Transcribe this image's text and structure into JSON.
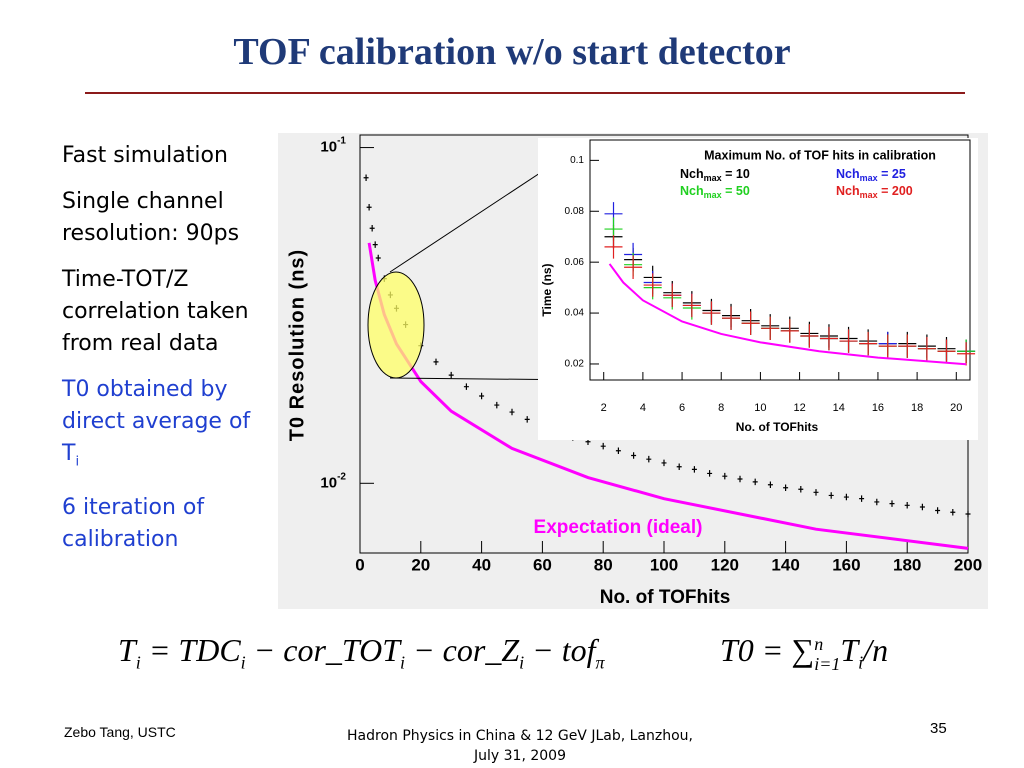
{
  "header": {
    "title": "TOF calibration w/o start detector"
  },
  "bullets": [
    {
      "text": "Fast simulation",
      "color": "#000000"
    },
    {
      "text": "Single channel resolution: 90ps",
      "color": "#000000"
    },
    {
      "text": "Time-TOT/Z correlation taken from real data",
      "color": "#000000"
    },
    {
      "text": "T0 obtained by direct average of T",
      "sub": "i",
      "color": "#1f3fd0"
    },
    {
      "text": "6 iteration of calibration",
      "color": "#1f3fd0"
    }
  ],
  "formula_1": [
    [
      "T",
      "i"
    ],
    [
      " = TDC",
      "i"
    ],
    [
      " − cor_TOT",
      "i"
    ],
    [
      " − cor_Z",
      "i"
    ],
    [
      " − tof",
      "π"
    ]
  ],
  "formula_2": {
    "main": "T0 = ∑",
    "upper": "n",
    "lower": "i=1",
    "term": "T",
    "term_sub": "i",
    "divisor": "/n"
  },
  "footer": {
    "author": "Zebo Tang, USTC",
    "event": "Hadron Physics in China & 12 GeV JLab, Lanzhou,",
    "date": "July 31, 2009",
    "page": "35"
  },
  "chart_data": [
    {
      "type": "scatter",
      "xlabel": "No. of TOFhits",
      "ylabel": "T0 Resolution (ns)",
      "annotation": "Expectation (ideal)",
      "log_y": true,
      "xlim": [
        0,
        200
      ],
      "xticks": [
        0,
        20,
        40,
        60,
        80,
        100,
        120,
        140,
        160,
        180,
        200
      ],
      "ylim": [
        0.0062,
        0.109
      ],
      "yticks": [
        {
          "value": 0.01,
          "label": "10-2"
        },
        {
          "value": 0.1,
          "label": "10-1"
        }
      ],
      "series": [
        {
          "color": "#000000",
          "style": "points",
          "x": [
            2,
            3,
            4,
            5,
            6,
            8,
            10,
            12,
            15,
            20,
            25,
            30,
            35,
            40,
            45,
            50,
            55,
            60,
            65,
            70,
            75,
            80,
            85,
            90,
            95,
            100,
            105,
            110,
            115,
            120,
            125,
            130,
            135,
            140,
            145,
            150,
            155,
            160,
            165,
            170,
            175,
            180,
            185,
            190,
            195,
            200
          ],
          "values": [
            0.0813,
            0.0664,
            0.0575,
            0.0514,
            0.0469,
            0.0407,
            0.0364,
            0.0332,
            0.0297,
            0.0257,
            0.023,
            0.021,
            0.0194,
            0.0182,
            0.0171,
            0.0163,
            0.0155,
            0.0148,
            0.0143,
            0.0137,
            0.0133,
            0.0129,
            0.0125,
            0.0121,
            0.0118,
            0.0115,
            0.0112,
            0.011,
            0.0107,
            0.0105,
            0.0103,
            0.0101,
            0.0099,
            0.0097,
            0.0096,
            0.0094,
            0.0092,
            0.0091,
            0.009,
            0.0088,
            0.0087,
            0.0086,
            0.0085,
            0.0083,
            0.0082,
            0.0081
          ]
        },
        {
          "color": "#ff00ff",
          "style": "line",
          "x": [
            3,
            5,
            8,
            12,
            20,
            30,
            50,
            75,
            100,
            150,
            200
          ],
          "values": [
            0.052,
            0.0402,
            0.0318,
            0.026,
            0.0201,
            0.0164,
            0.0127,
            0.0104,
            0.009,
            0.0073,
            0.0064
          ]
        }
      ]
    },
    {
      "type": "scatter",
      "title": "Maximum No. of TOF hits in calibration",
      "xlabel": "No. of TOFhits",
      "ylabel": "Time (ns)",
      "xlim": [
        1.3,
        20.7
      ],
      "xticks": [
        2,
        4,
        6,
        8,
        10,
        12,
        14,
        16,
        18,
        20
      ],
      "ylim": [
        0.0137,
        0.108
      ],
      "yticks": [
        0.02,
        0.04,
        0.06,
        0.08,
        0.1
      ],
      "x": [
        2.5,
        3.5,
        4.5,
        5.5,
        6.5,
        7.5,
        8.5,
        9.5,
        10.5,
        11.5,
        12.5,
        13.5,
        14.5,
        15.5,
        16.5,
        17.5,
        18.5,
        19.5,
        20.5
      ],
      "series": [
        {
          "name": "Nchmax = 10",
          "color": "#000000",
          "values": [
            0.07,
            0.061,
            0.054,
            0.048,
            0.044,
            0.041,
            0.039,
            0.037,
            0.035,
            0.034,
            0.032,
            0.031,
            0.03,
            0.029,
            0.028,
            0.028,
            0.027,
            0.026,
            0.025
          ]
        },
        {
          "name": "Nchmax = 25",
          "color": "#2020e0",
          "values": [
            0.079,
            0.063,
            0.052,
            0.047,
            0.043,
            0.04,
            0.038,
            0.036,
            0.034,
            0.033,
            0.031,
            0.03,
            0.029,
            0.028,
            0.028,
            0.027,
            0.026,
            0.025,
            0.025
          ]
        },
        {
          "name": "Nchmax = 50",
          "color": "#20d020",
          "values": [
            0.073,
            0.059,
            0.05,
            0.046,
            0.042,
            0.04,
            0.038,
            0.036,
            0.034,
            0.033,
            0.031,
            0.03,
            0.029,
            0.028,
            0.027,
            0.027,
            0.026,
            0.025,
            0.025
          ]
        },
        {
          "name": "Nchmax = 200",
          "color": "#e02020",
          "values": [
            0.066,
            0.058,
            0.051,
            0.047,
            0.043,
            0.04,
            0.038,
            0.036,
            0.034,
            0.033,
            0.031,
            0.03,
            0.029,
            0.028,
            0.027,
            0.027,
            0.026,
            0.025,
            0.024
          ]
        }
      ],
      "expectation": {
        "color": "#ff00ff",
        "x": [
          2.3,
          3,
          4,
          6,
          8,
          10,
          13,
          16,
          20.5
        ],
        "values": [
          0.0593,
          0.052,
          0.045,
          0.0367,
          0.0318,
          0.0285,
          0.025,
          0.0225,
          0.0199
        ]
      }
    }
  ]
}
